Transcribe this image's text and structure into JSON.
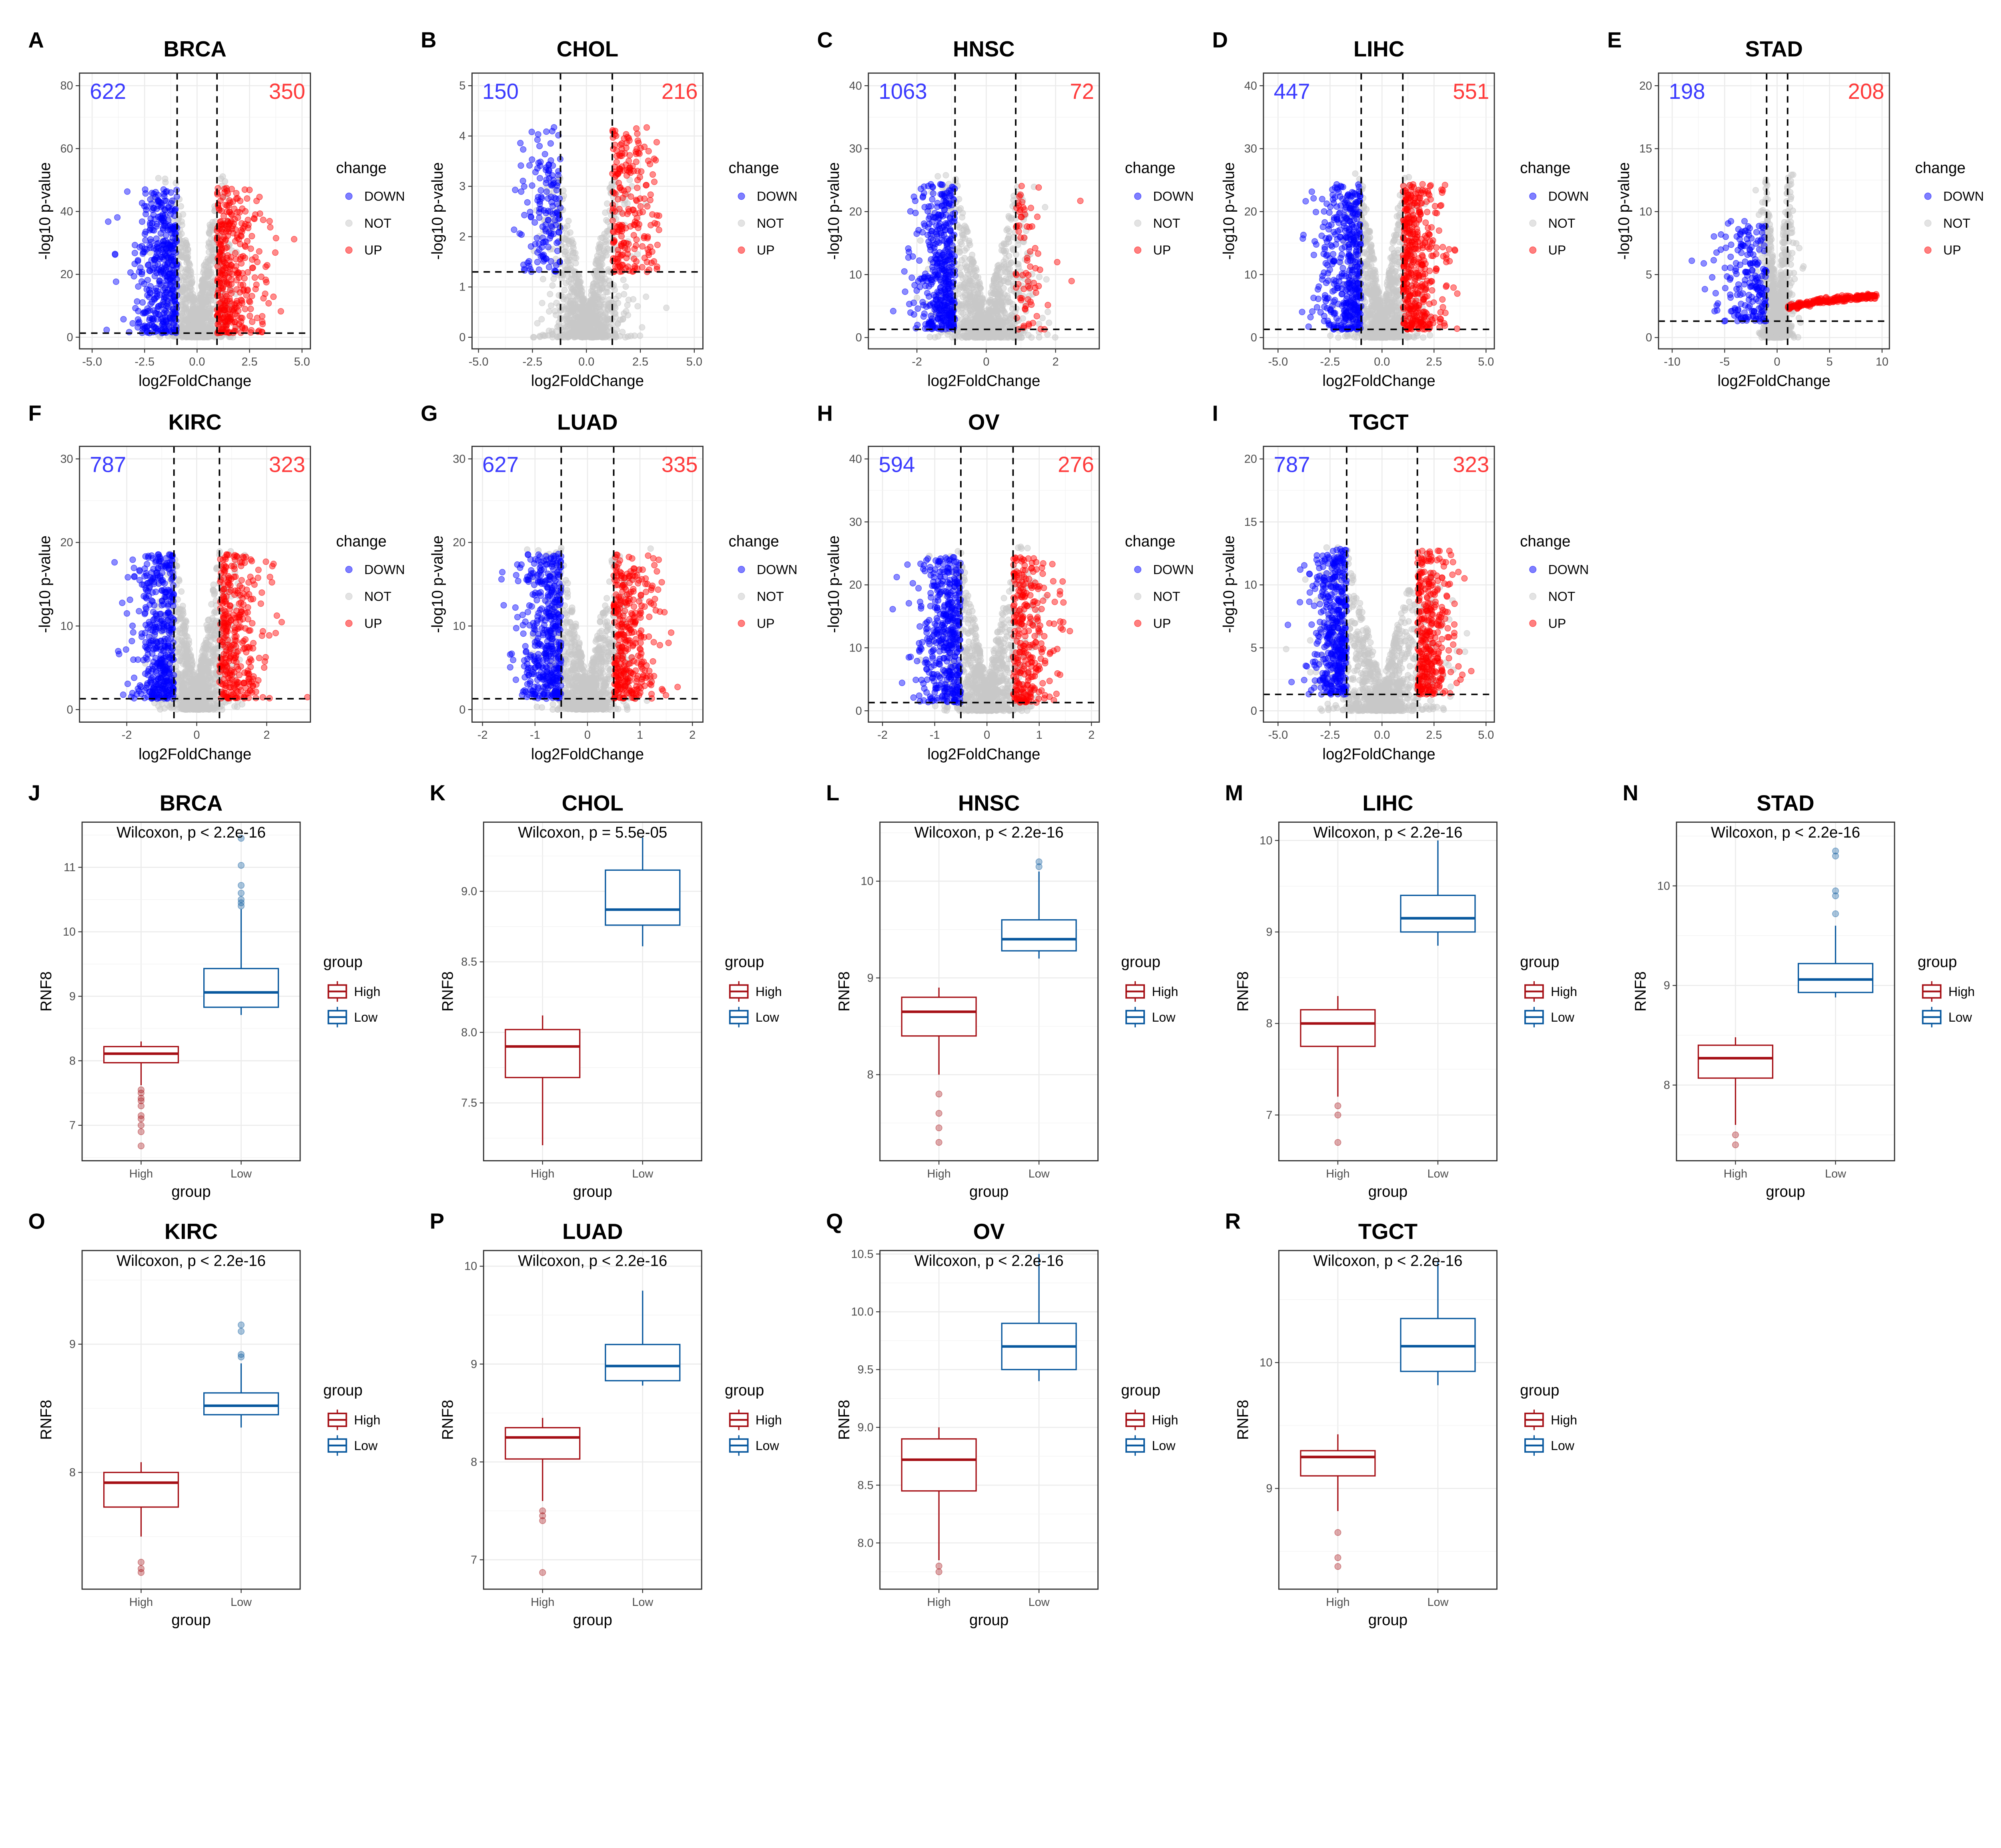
{
  "colors": {
    "down": "#0000ff",
    "not": "#c8c8c8",
    "up": "#ff0000",
    "down_label": "#3b3bff",
    "up_label": "#ff3b3b",
    "high": "#a50f15",
    "low": "#08589e"
  },
  "chart_data": [
    {
      "panel": "A",
      "type": "scatter",
      "title": "BRCA",
      "xlabel": "log2FoldChange",
      "ylabel": "-log10 p-value",
      "xticks": [
        -5.0,
        -2.5,
        0.0,
        2.5,
        5.0
      ],
      "xtick_labels": [
        "-5.0",
        "-2.5",
        "0.0",
        "2.5",
        "5.0"
      ],
      "yticks": [
        0,
        20,
        40,
        60,
        80
      ],
      "xlim": [
        -5.6,
        5.4
      ],
      "ylim": [
        -3.7,
        84
      ],
      "down_count": "622",
      "up_count": "350",
      "fc_threshold": [
        -0.95,
        0.95
      ],
      "p_threshold": 1.3,
      "legend": {
        "title": "change",
        "entries": [
          "DOWN",
          "NOT",
          "UP"
        ]
      },
      "grid": true
    },
    {
      "panel": "B",
      "type": "scatter",
      "title": "CHOL",
      "xlabel": "log2FoldChange",
      "ylabel": "-log10 p-value",
      "xticks": [
        -5.0,
        -2.5,
        0.0,
        2.5,
        5.0
      ],
      "xtick_labels": [
        "-5.0",
        "-2.5",
        "0.0",
        "2.5",
        "5.0"
      ],
      "yticks": [
        0,
        1,
        2,
        3,
        4,
        5
      ],
      "xlim": [
        -5.3,
        5.4
      ],
      "ylim": [
        -0.23,
        5.25
      ],
      "down_count": "150",
      "up_count": "216",
      "fc_threshold": [
        -1.2,
        1.2
      ],
      "p_threshold": 1.3,
      "legend": {
        "title": "change",
        "entries": [
          "DOWN",
          "NOT",
          "UP"
        ]
      },
      "grid": true
    },
    {
      "panel": "C",
      "type": "scatter",
      "title": "HNSC",
      "xlabel": "log2FoldChange",
      "ylabel": "-log10 p-value",
      "xticks": [
        -2,
        0,
        2
      ],
      "xtick_labels": [
        "-2",
        "0",
        "2"
      ],
      "yticks": [
        0,
        10,
        20,
        30,
        40
      ],
      "xlim": [
        -3.4,
        3.26
      ],
      "ylim": [
        -1.8,
        42
      ],
      "down_count": "1063",
      "up_count": "72",
      "fc_threshold": [
        -0.9,
        0.85
      ],
      "p_threshold": 1.3,
      "legend": {
        "title": "change",
        "entries": [
          "DOWN",
          "NOT",
          "UP"
        ]
      },
      "grid": true
    },
    {
      "panel": "D",
      "type": "scatter",
      "title": "LIHC",
      "xlabel": "log2FoldChange",
      "ylabel": "-log10 p-value",
      "xticks": [
        -5.0,
        -2.5,
        0.0,
        2.5,
        5.0
      ],
      "xtick_labels": [
        "-5.0",
        "-2.5",
        "0.0",
        "2.5",
        "5.0"
      ],
      "yticks": [
        0,
        10,
        20,
        30,
        40
      ],
      "xlim": [
        -5.7,
        5.4
      ],
      "ylim": [
        -1.8,
        42
      ],
      "down_count": "447",
      "up_count": "551",
      "fc_threshold": [
        -1.0,
        1.0
      ],
      "p_threshold": 1.3,
      "legend": {
        "title": "change",
        "entries": [
          "DOWN",
          "NOT",
          "UP"
        ]
      },
      "grid": true
    },
    {
      "panel": "E",
      "type": "scatter",
      "title": "STAD",
      "xlabel": "log2FoldChange",
      "ylabel": "-log10 p-value",
      "xticks": [
        -10,
        -5,
        0,
        5,
        10
      ],
      "xtick_labels": [
        "-10",
        "-5",
        "0",
        "5",
        "10"
      ],
      "yticks": [
        0,
        5,
        10,
        15,
        20
      ],
      "xlim": [
        -11.3,
        10.7
      ],
      "ylim": [
        -0.9,
        21
      ],
      "down_count": "198",
      "up_count": "208",
      "fc_threshold": [
        -1.0,
        1.0
      ],
      "p_threshold": 1.3,
      "legend": {
        "title": "change",
        "entries": [
          "DOWN",
          "NOT",
          "UP"
        ]
      },
      "grid": true
    },
    {
      "panel": "F",
      "type": "scatter",
      "title": "KIRC",
      "xlabel": "log2FoldChange",
      "ylabel": "-log10 p-value",
      "xticks": [
        -2,
        0,
        2
      ],
      "xtick_labels": [
        "-2",
        "0",
        "2"
      ],
      "yticks": [
        0,
        10,
        20,
        30
      ],
      "xlim": [
        -3.35,
        3.25
      ],
      "ylim": [
        -1.5,
        31.5
      ],
      "down_count": "787",
      "up_count": "323",
      "fc_threshold": [
        -0.65,
        0.65
      ],
      "p_threshold": 1.3,
      "legend": {
        "title": "change",
        "entries": [
          "DOWN",
          "NOT",
          "UP"
        ]
      },
      "grid": true
    },
    {
      "panel": "G",
      "type": "scatter",
      "title": "LUAD",
      "xlabel": "log2FoldChange",
      "ylabel": "-log10 p-value",
      "xticks": [
        -2,
        -1,
        0,
        1,
        2
      ],
      "xtick_labels": [
        "-2",
        "-1",
        "0",
        "1",
        "2"
      ],
      "yticks": [
        0,
        10,
        20,
        30
      ],
      "xlim": [
        -2.2,
        2.2
      ],
      "ylim": [
        -1.5,
        31.5
      ],
      "down_count": "627",
      "up_count": "335",
      "fc_threshold": [
        -0.5,
        0.5
      ],
      "p_threshold": 1.3,
      "legend": {
        "title": "change",
        "entries": [
          "DOWN",
          "NOT",
          "UP"
        ]
      },
      "grid": true
    },
    {
      "panel": "H",
      "type": "scatter",
      "title": "OV",
      "xlabel": "log2FoldChange",
      "ylabel": "-log10 p-value",
      "xticks": [
        -2,
        -1,
        0,
        1,
        2
      ],
      "xtick_labels": [
        "-2",
        "-1",
        "0",
        "1",
        "2"
      ],
      "yticks": [
        0,
        10,
        20,
        30,
        40
      ],
      "xlim": [
        -2.27,
        2.15
      ],
      "ylim": [
        -1.8,
        42
      ],
      "down_count": "594",
      "up_count": "276",
      "fc_threshold": [
        -0.5,
        0.5
      ],
      "p_threshold": 1.3,
      "legend": {
        "title": "change",
        "entries": [
          "DOWN",
          "NOT",
          "UP"
        ]
      },
      "grid": true
    },
    {
      "panel": "I",
      "type": "scatter",
      "title": "TGCT",
      "xlabel": "log2FoldChange",
      "ylabel": "-log10 p-value",
      "xticks": [
        -5.0,
        -2.5,
        0.0,
        2.5,
        5.0
      ],
      "xtick_labels": [
        "-5.0",
        "-2.5",
        "0.0",
        "2.5",
        "5.0"
      ],
      "yticks": [
        0,
        5,
        10,
        15,
        20
      ],
      "xlim": [
        -5.7,
        5.4
      ],
      "ylim": [
        -0.9,
        21
      ],
      "down_count": "787",
      "up_count": "323",
      "fc_threshold": [
        -1.7,
        1.7
      ],
      "p_threshold": 1.3,
      "legend": {
        "title": "change",
        "entries": [
          "DOWN",
          "NOT",
          "UP"
        ]
      },
      "grid": true
    },
    {
      "panel": "J",
      "type": "box",
      "title": "BRCA",
      "annotation": "Wilcoxon, p < 2.2e-16",
      "xlabel": "group",
      "ylabel": "RNF8",
      "categories": [
        "High",
        "Low"
      ],
      "yticks": [
        7,
        8,
        9,
        10,
        11
      ],
      "ylim": [
        6.45,
        11.7
      ],
      "legend": {
        "title": "group",
        "entries": [
          "High",
          "Low"
        ]
      },
      "boxes": [
        {
          "name": "High",
          "whisker_low": 7.62,
          "q1": 7.97,
          "median": 8.11,
          "q3": 8.22,
          "whisker_high": 8.3,
          "outliers": [
            7.55,
            7.5,
            7.42,
            7.38,
            7.3,
            7.15,
            7.1,
            7.0,
            6.9,
            6.68
          ]
        },
        {
          "name": "Low",
          "whisker_low": 8.71,
          "q1": 8.83,
          "median": 9.06,
          "q3": 9.43,
          "whisker_high": 10.35,
          "outliers": [
            10.4,
            10.45,
            10.5,
            10.6,
            10.72,
            11.03,
            11.45
          ]
        }
      ]
    },
    {
      "panel": "K",
      "type": "box",
      "title": "CHOL",
      "annotation": "Wilcoxon, p = 5.5e-05",
      "xlabel": "group",
      "ylabel": "RNF8",
      "categories": [
        "High",
        "Low"
      ],
      "yticks": [
        7.5,
        8.0,
        8.5,
        9.0
      ],
      "ytick_labels": [
        "7.5",
        "8.0",
        "8.5",
        "9.0"
      ],
      "ylim": [
        7.09,
        9.49
      ],
      "legend": {
        "title": "group",
        "entries": [
          "High",
          "Low"
        ]
      },
      "boxes": [
        {
          "name": "High",
          "whisker_low": 7.2,
          "q1": 7.68,
          "median": 7.9,
          "q3": 8.02,
          "whisker_high": 8.12,
          "outliers": []
        },
        {
          "name": "Low",
          "whisker_low": 8.61,
          "q1": 8.76,
          "median": 8.87,
          "q3": 9.15,
          "whisker_high": 9.38,
          "outliers": []
        }
      ]
    },
    {
      "panel": "L",
      "type": "box",
      "title": "HNSC",
      "annotation": "Wilcoxon, p < 2.2e-16",
      "xlabel": "group",
      "ylabel": "RNF8",
      "categories": [
        "High",
        "Low"
      ],
      "yticks": [
        8,
        9,
        10
      ],
      "ylim": [
        7.11,
        10.61
      ],
      "legend": {
        "title": "group",
        "entries": [
          "High",
          "Low"
        ]
      },
      "boxes": [
        {
          "name": "High",
          "whisker_low": 8.0,
          "q1": 8.4,
          "median": 8.65,
          "q3": 8.8,
          "whisker_high": 8.9,
          "outliers": [
            7.8,
            7.6,
            7.45,
            7.3
          ]
        },
        {
          "name": "Low",
          "whisker_low": 9.2,
          "q1": 9.28,
          "median": 9.4,
          "q3": 9.6,
          "whisker_high": 10.1,
          "outliers": [
            10.15,
            10.2
          ]
        }
      ]
    },
    {
      "panel": "M",
      "type": "box",
      "title": "LIHC",
      "annotation": "Wilcoxon, p < 2.2e-16",
      "xlabel": "group",
      "ylabel": "RNF8",
      "categories": [
        "High",
        "Low"
      ],
      "yticks": [
        7,
        8,
        9,
        10
      ],
      "ylim": [
        6.5,
        10.2
      ],
      "legend": {
        "title": "group",
        "entries": [
          "High",
          "Low"
        ]
      },
      "boxes": [
        {
          "name": "High",
          "whisker_low": 7.2,
          "q1": 7.75,
          "median": 8.0,
          "q3": 8.15,
          "whisker_high": 8.3,
          "outliers": [
            7.1,
            7.0,
            6.7
          ]
        },
        {
          "name": "Low",
          "whisker_low": 8.85,
          "q1": 9.0,
          "median": 9.15,
          "q3": 9.4,
          "whisker_high": 10.0,
          "outliers": []
        }
      ]
    },
    {
      "panel": "N",
      "type": "box",
      "title": "STAD",
      "annotation": "Wilcoxon, p < 2.2e-16",
      "xlabel": "group",
      "ylabel": "RNF8",
      "categories": [
        "High",
        "Low"
      ],
      "yticks": [
        8,
        9,
        10
      ],
      "ylim": [
        7.24,
        10.64
      ],
      "legend": {
        "title": "group",
        "entries": [
          "High",
          "Low"
        ]
      },
      "boxes": [
        {
          "name": "High",
          "whisker_low": 7.6,
          "q1": 8.07,
          "median": 8.27,
          "q3": 8.4,
          "whisker_high": 8.48,
          "outliers": [
            7.5,
            7.4
          ]
        },
        {
          "name": "Low",
          "whisker_low": 8.88,
          "q1": 8.93,
          "median": 9.06,
          "q3": 9.22,
          "whisker_high": 9.6,
          "outliers": [
            9.72,
            9.9,
            9.95,
            10.3,
            10.35
          ]
        }
      ]
    },
    {
      "panel": "O",
      "type": "box",
      "title": "KIRC",
      "annotation": "Wilcoxon, p < 2.2e-16",
      "xlabel": "group",
      "ylabel": "RNF8",
      "categories": [
        "High",
        "Low"
      ],
      "yticks": [
        8,
        9
      ],
      "ylim": [
        7.09,
        9.73
      ],
      "legend": {
        "title": "group",
        "entries": [
          "High",
          "Low"
        ]
      },
      "boxes": [
        {
          "name": "High",
          "whisker_low": 7.5,
          "q1": 7.73,
          "median": 7.92,
          "q3": 8.0,
          "whisker_high": 8.08,
          "outliers": [
            7.3,
            7.25,
            7.22
          ]
        },
        {
          "name": "Low",
          "whisker_low": 8.35,
          "q1": 8.45,
          "median": 8.52,
          "q3": 8.62,
          "whisker_high": 8.85,
          "outliers": [
            8.9,
            8.92,
            9.1,
            9.15
          ]
        }
      ]
    },
    {
      "panel": "P",
      "type": "box",
      "title": "LUAD",
      "annotation": "Wilcoxon, p < 2.2e-16",
      "xlabel": "group",
      "ylabel": "RNF8",
      "categories": [
        "High",
        "Low"
      ],
      "yticks": [
        7,
        8,
        9,
        10
      ],
      "ylim": [
        6.7,
        10.16
      ],
      "legend": {
        "title": "group",
        "entries": [
          "High",
          "Low"
        ]
      },
      "boxes": [
        {
          "name": "High",
          "whisker_low": 7.6,
          "q1": 8.03,
          "median": 8.25,
          "q3": 8.35,
          "whisker_high": 8.45,
          "outliers": [
            7.5,
            7.45,
            7.4,
            6.87
          ]
        },
        {
          "name": "Low",
          "whisker_low": 8.78,
          "q1": 8.83,
          "median": 8.98,
          "q3": 9.2,
          "whisker_high": 9.75,
          "outliers": []
        }
      ]
    },
    {
      "panel": "Q",
      "type": "box",
      "title": "OV",
      "annotation": "Wilcoxon, p < 2.2e-16",
      "xlabel": "group",
      "ylabel": "RNF8",
      "categories": [
        "High",
        "Low"
      ],
      "yticks": [
        8.0,
        8.5,
        9.0,
        9.5,
        10.0,
        10.5
      ],
      "ytick_labels": [
        "8.0",
        "8.5",
        "9.0",
        "9.5",
        "10.0",
        "10.5"
      ],
      "ylim": [
        7.6,
        10.53
      ],
      "legend": {
        "title": "group",
        "entries": [
          "High",
          "Low"
        ]
      },
      "boxes": [
        {
          "name": "High",
          "whisker_low": 7.85,
          "q1": 8.45,
          "median": 8.72,
          "q3": 8.9,
          "whisker_high": 9.0,
          "outliers": [
            7.8,
            7.75
          ]
        },
        {
          "name": "Low",
          "whisker_low": 9.4,
          "q1": 9.5,
          "median": 9.7,
          "q3": 9.9,
          "whisker_high": 10.5,
          "outliers": []
        }
      ]
    },
    {
      "panel": "R",
      "type": "box",
      "title": "TGCT",
      "annotation": "Wilcoxon, p < 2.2e-16",
      "xlabel": "group",
      "ylabel": "RNF8",
      "categories": [
        "High",
        "Low"
      ],
      "yticks": [
        9,
        10
      ],
      "ylim": [
        8.2,
        10.89
      ],
      "legend": {
        "title": "group",
        "entries": [
          "High",
          "Low"
        ]
      },
      "boxes": [
        {
          "name": "High",
          "whisker_low": 8.82,
          "q1": 9.1,
          "median": 9.25,
          "q3": 9.3,
          "whisker_high": 9.43,
          "outliers": [
            8.65,
            8.45,
            8.38
          ]
        },
        {
          "name": "Low",
          "whisker_low": 9.82,
          "q1": 9.93,
          "median": 10.13,
          "q3": 10.35,
          "whisker_high": 10.8,
          "outliers": []
        }
      ]
    }
  ]
}
